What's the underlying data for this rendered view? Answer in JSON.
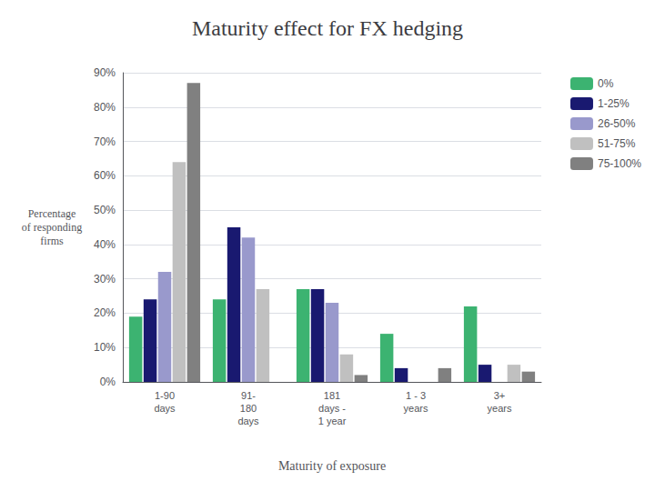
{
  "chart_data": {
    "type": "bar",
    "title": "Maturity effect for FX hedging",
    "xlabel": "Maturity of exposure",
    "ylabel": "Percentage\nof responding\nfirms",
    "categories": [
      "1-90\ndays",
      "91-\n180\ndays",
      "181\ndays -\n1 year",
      "1 - 3\nyears",
      "3+\nyears"
    ],
    "series": [
      {
        "name": "0%",
        "color": "#3CB371",
        "values": [
          19,
          24,
          27,
          14,
          22
        ]
      },
      {
        "name": "1-25%",
        "color": "#191970",
        "values": [
          24,
          45,
          27,
          4,
          5
        ]
      },
      {
        "name": "26-50%",
        "color": "#9999CC",
        "values": [
          32,
          42,
          23,
          0,
          0
        ]
      },
      {
        "name": "51-75%",
        "color": "#C0C0C0",
        "values": [
          64,
          27,
          8,
          0,
          5
        ]
      },
      {
        "name": "75-100%",
        "color": "#808080",
        "values": [
          87,
          0,
          2,
          4,
          3
        ]
      }
    ],
    "ylim": [
      0,
      90
    ],
    "yticks": [
      {
        "value": 0,
        "label": "0%"
      },
      {
        "value": 10,
        "label": "10%"
      },
      {
        "value": 20,
        "label": "20%"
      },
      {
        "value": 30,
        "label": "30%"
      },
      {
        "value": 40,
        "label": "40%"
      },
      {
        "value": 50,
        "label": "50%"
      },
      {
        "value": 60,
        "label": "60%"
      },
      {
        "value": 70,
        "label": "70%"
      },
      {
        "value": 80,
        "label": "80%"
      },
      {
        "value": 90,
        "label": "90%"
      }
    ],
    "grid": true,
    "legend": "right"
  }
}
